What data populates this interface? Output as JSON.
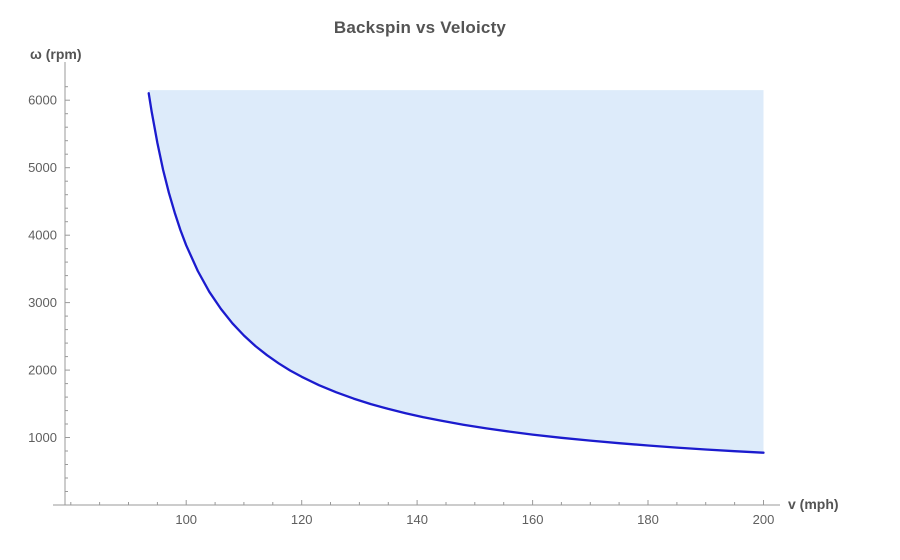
{
  "chart_data": {
    "type": "area",
    "title": "Backspin vs Veloicty",
    "xlabel": "v (mph)",
    "ylabel": "ω (rpm)",
    "xlim": [
      79,
      202
    ],
    "ylim": [
      0,
      6300
    ],
    "x_ticks": [
      100,
      120,
      140,
      160,
      180,
      200
    ],
    "y_ticks": [
      1000,
      2000,
      3000,
      4000,
      5000,
      6000
    ],
    "x_minor_step": 5,
    "y_minor_step": 200,
    "grid": "off",
    "legend": "none",
    "fill_region": "above-curve",
    "fill_to": 6150,
    "series": [
      {
        "name": "backspin-vs-velocity-curve",
        "points": [
          [
            93.5,
            6105
          ],
          [
            94,
            5836
          ],
          [
            95,
            5366
          ],
          [
            96,
            4968
          ],
          [
            97,
            4628
          ],
          [
            98,
            4334
          ],
          [
            99,
            4077
          ],
          [
            100,
            3850
          ],
          [
            102,
            3469
          ],
          [
            104,
            3161
          ],
          [
            106,
            2907
          ],
          [
            108,
            2693
          ],
          [
            110,
            2512
          ],
          [
            112,
            2356
          ],
          [
            114,
            2220
          ],
          [
            116,
            2100
          ],
          [
            118,
            1994
          ],
          [
            120,
            1900
          ],
          [
            123,
            1776
          ],
          [
            126,
            1670
          ],
          [
            129,
            1577
          ],
          [
            132,
            1496
          ],
          [
            135,
            1424
          ],
          [
            138,
            1361
          ],
          [
            141,
            1303
          ],
          [
            144,
            1252
          ],
          [
            148,
            1190
          ],
          [
            152,
            1136
          ],
          [
            156,
            1088
          ],
          [
            160,
            1044
          ],
          [
            165,
            996
          ],
          [
            170,
            954
          ],
          [
            175,
            916
          ],
          [
            180,
            882
          ],
          [
            185,
            851
          ],
          [
            190,
            823
          ],
          [
            195,
            798
          ],
          [
            200,
            775
          ]
        ]
      }
    ],
    "colors": {
      "line": "#1b1bce",
      "fill": "#ddebfa",
      "axis": "#9a9a9a",
      "tick_label": "#5f5f5f",
      "title": "#545454"
    }
  }
}
